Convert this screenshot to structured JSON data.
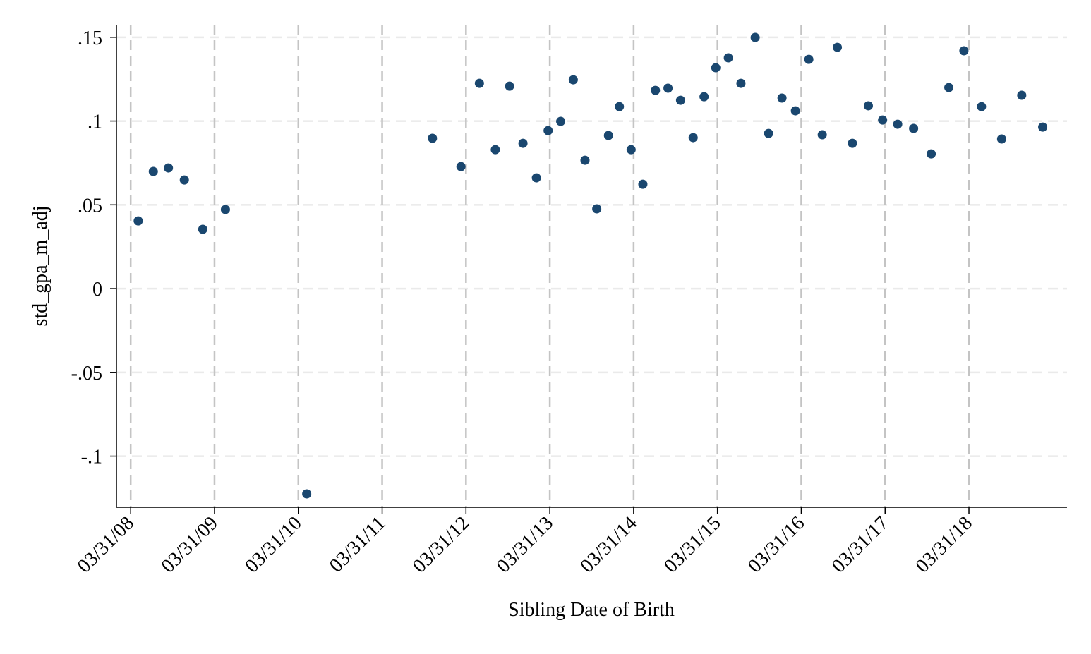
{
  "chart_data": {
    "type": "scatter",
    "xlabel": "Sibling Date of Birth",
    "ylabel": "std_gpa_m_adj",
    "color": "#1a476f",
    "grid": true,
    "xlim": [
      2008.08,
      2019.42
    ],
    "ylim": [
      -0.1305,
      0.1575
    ],
    "xticks": [
      {
        "value": 2008.25,
        "label": "03/31/08"
      },
      {
        "value": 2009.25,
        "label": "03/31/09"
      },
      {
        "value": 2010.25,
        "label": "03/31/10"
      },
      {
        "value": 2011.25,
        "label": "03/31/11"
      },
      {
        "value": 2012.25,
        "label": "03/31/12"
      },
      {
        "value": 2013.25,
        "label": "03/31/13"
      },
      {
        "value": 2014.25,
        "label": "03/31/14"
      },
      {
        "value": 2015.25,
        "label": "03/31/15"
      },
      {
        "value": 2016.25,
        "label": "03/31/16"
      },
      {
        "value": 2017.25,
        "label": "03/31/17"
      },
      {
        "value": 2018.25,
        "label": "03/31/18"
      }
    ],
    "yticks": [
      {
        "value": 0.15,
        "label": ".15"
      },
      {
        "value": 0.1,
        "label": ".1"
      },
      {
        "value": 0.05,
        "label": ".05"
      },
      0,
      {
        "value": -0.05,
        "label": "-.05"
      },
      {
        "value": -0.1,
        "label": "-.1"
      }
    ],
    "x": [
      2008.34,
      2008.52,
      2008.7,
      2008.89,
      2009.11,
      2009.38,
      2010.35,
      2011.85,
      2012.19,
      2012.41,
      2012.6,
      2012.77,
      2012.93,
      2013.09,
      2013.23,
      2013.38,
      2013.53,
      2013.67,
      2013.81,
      2013.95,
      2014.08,
      2014.22,
      2014.36,
      2014.51,
      2014.66,
      2014.81,
      2014.96,
      2015.09,
      2015.23,
      2015.38,
      2015.53,
      2015.7,
      2015.86,
      2016.02,
      2016.18,
      2016.34,
      2016.5,
      2016.68,
      2016.86,
      2017.05,
      2017.22,
      2017.4,
      2017.59,
      2017.8,
      2018.01,
      2018.19,
      2018.4,
      2018.64,
      2018.88,
      2019.13
    ],
    "values": [
      0.0404,
      0.0699,
      0.072,
      0.0648,
      0.0354,
      0.0472,
      -0.1225,
      0.0897,
      0.0728,
      0.1225,
      0.0829,
      0.1208,
      0.0867,
      0.0661,
      0.0943,
      0.0998,
      0.1246,
      0.0766,
      0.0476,
      0.0914,
      0.1086,
      0.0829,
      0.0623,
      0.1183,
      0.1196,
      0.1124,
      0.0901,
      0.1145,
      0.1318,
      0.1377,
      0.1225,
      0.1499,
      0.0926,
      0.1137,
      0.1061,
      0.1368,
      0.0918,
      0.144,
      0.0867,
      0.1091,
      0.1006,
      0.0981,
      0.0956,
      0.0804,
      0.12,
      0.1419,
      0.1086,
      0.0893,
      0.1154,
      0.0964
    ]
  }
}
